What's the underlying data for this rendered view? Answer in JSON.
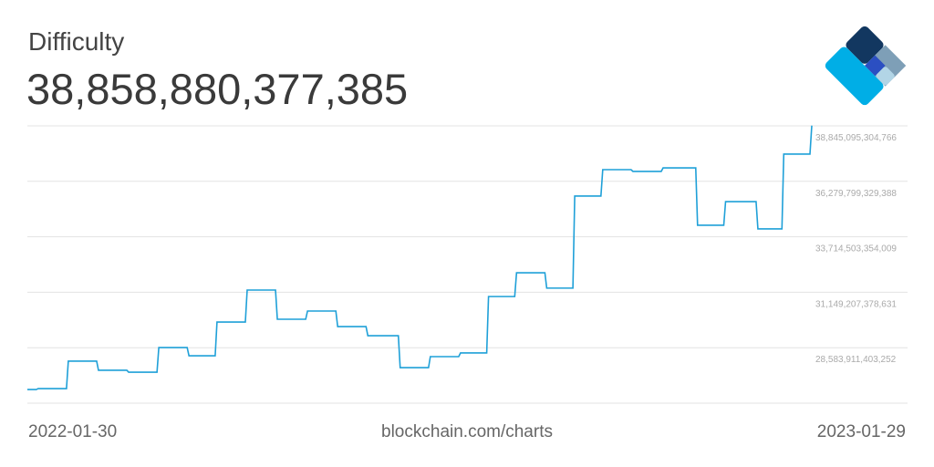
{
  "header": {
    "title": "Difficulty",
    "current_value": "38,858,880,377,385"
  },
  "footer": {
    "start_date": "2022-01-30",
    "source": "blockchain.com/charts",
    "end_date": "2023-01-29"
  },
  "logo": {
    "colors": [
      "#123760",
      "#7e9fb7",
      "#2b4fc2",
      "#b2d5e6",
      "#00aee6"
    ]
  },
  "chart_data": {
    "type": "line",
    "title": "Difficulty",
    "line_color": "#1fa0d8",
    "grid": true,
    "xlim": [
      "2022-01-30",
      "2023-01-29"
    ],
    "ylim": [
      26018615427874,
      38845095304766
    ],
    "y_ticks": [
      {
        "value": 28583911403252,
        "label": "28,583,911,403,252"
      },
      {
        "value": 31149207378631,
        "label": "31,149,207,378,631"
      },
      {
        "value": 33714503354009,
        "label": "33,714,503,354,009"
      },
      {
        "value": 36279799329388,
        "label": "36,279,799,329,388"
      },
      {
        "value": 38845095304766,
        "label": "38,845,095,304,766"
      }
    ],
    "points": [
      [
        "2022-01-30",
        26650000000000
      ],
      [
        "2022-02-04",
        26690000000000
      ],
      [
        "2022-02-18",
        27960000000000
      ],
      [
        "2022-03-04",
        27540000000000
      ],
      [
        "2022-03-18",
        27450000000000
      ],
      [
        "2022-04-01",
        28590000000000
      ],
      [
        "2022-04-15",
        28210000000000
      ],
      [
        "2022-04-28",
        29770000000000
      ],
      [
        "2022-05-12",
        31250000000000
      ],
      [
        "2022-05-26",
        29900000000000
      ],
      [
        "2022-06-09",
        30280000000000
      ],
      [
        "2022-06-23",
        29560000000000
      ],
      [
        "2022-07-07",
        29140000000000
      ],
      [
        "2022-07-22",
        27660000000000
      ],
      [
        "2022-08-05",
        28170000000000
      ],
      [
        "2022-08-19",
        28340000000000
      ],
      [
        "2022-09-01",
        30950000000000
      ],
      [
        "2022-09-14",
        32050000000000
      ],
      [
        "2022-09-28",
        31340000000000
      ],
      [
        "2022-10-11",
        35600000000000
      ],
      [
        "2022-10-24",
        36820000000000
      ],
      [
        "2022-11-07",
        36740000000000
      ],
      [
        "2022-11-21",
        36900000000000
      ],
      [
        "2022-12-07",
        34250000000000
      ],
      [
        "2022-12-20",
        35340000000000
      ],
      [
        "2023-01-04",
        34080000000000
      ],
      [
        "2023-01-16",
        37540000000000
      ],
      [
        "2023-01-29",
        38858880377385
      ]
    ]
  }
}
